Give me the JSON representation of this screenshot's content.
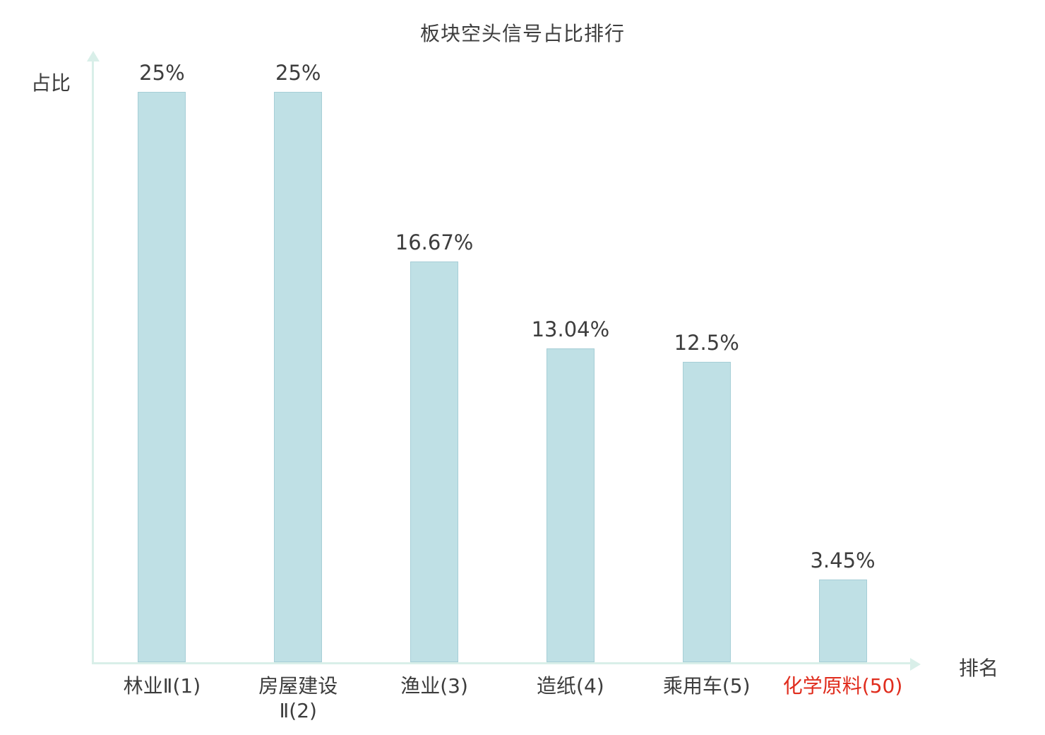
{
  "chart": {
    "title": "板块空头信号占比排行",
    "ylabel": "占比",
    "xlabel": "排名"
  },
  "chart_data": {
    "type": "bar",
    "title": "板块空头信号占比排行",
    "xlabel": "排名",
    "ylabel": "占比",
    "categories": [
      "林业Ⅱ(1)",
      "房屋建设\nⅡ(2)",
      "渔业(3)",
      "造纸(4)",
      "乘用车(5)",
      "化学原料(50)"
    ],
    "values": [
      25,
      25,
      16.67,
      13.04,
      12.5,
      3.45
    ],
    "value_labels": [
      "25%",
      "25%",
      "16.67%",
      "13.04%",
      "12.5%",
      "3.45%"
    ],
    "ylim": [
      0,
      25
    ],
    "grid": false,
    "legend": false,
    "bar_color": "#bfe0e5",
    "bar_border_color": "#a6ced6",
    "axis_color": "#d9efe9",
    "text_color": "#3d3d3d",
    "highlight_index": 5,
    "highlight_color": "#e02d1e"
  }
}
